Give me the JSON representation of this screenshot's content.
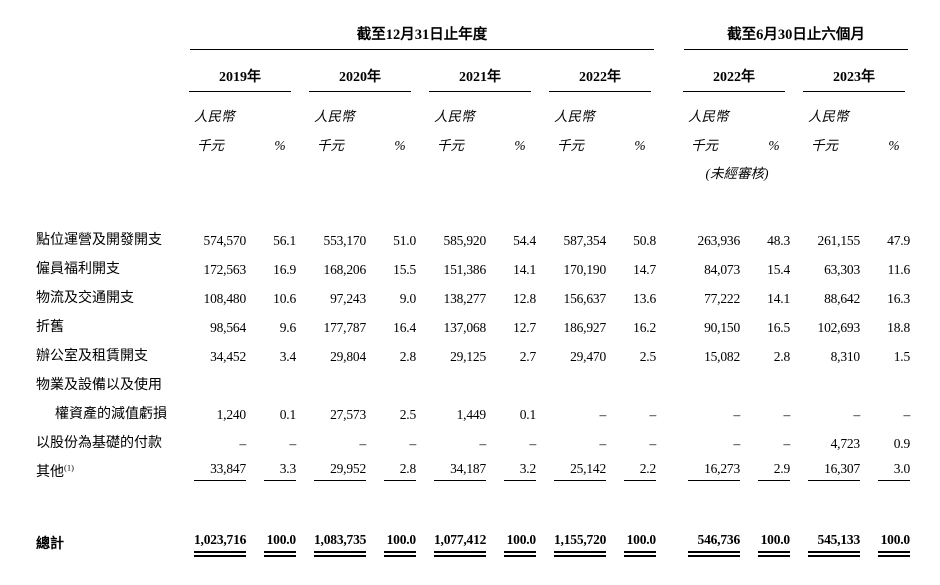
{
  "page": {
    "background": "#ffffff",
    "text_color": "#000000"
  },
  "table": {
    "col_groups": [
      {
        "title": "截至12月31日止年度",
        "years": [
          "2019年",
          "2020年",
          "2021年",
          "2022年"
        ]
      },
      {
        "title": "截至6月30日止六個月",
        "years": [
          "2022年",
          "2023年"
        ]
      }
    ],
    "years_flat": [
      "2019年",
      "2020年",
      "2021年",
      "2022年",
      "2022年",
      "2023年"
    ],
    "labels": {
      "currency": "人民幣",
      "unit": "千元",
      "pct": "%",
      "unaudited": "(未經審核)"
    },
    "rows": [
      {
        "label": "點位運營及開發開支",
        "values": [
          "574,570",
          "56.1",
          "553,170",
          "51.0",
          "585,920",
          "54.4",
          "587,354",
          "50.8",
          "263,936",
          "48.3",
          "261,155",
          "47.9"
        ]
      },
      {
        "label": "僱員福利開支",
        "values": [
          "172,563",
          "16.9",
          "168,206",
          "15.5",
          "151,386",
          "14.1",
          "170,190",
          "14.7",
          "84,073",
          "15.4",
          "63,303",
          "11.6"
        ]
      },
      {
        "label": "物流及交通開支",
        "values": [
          "108,480",
          "10.6",
          "97,243",
          "9.0",
          "138,277",
          "12.8",
          "156,637",
          "13.6",
          "77,222",
          "14.1",
          "88,642",
          "16.3"
        ]
      },
      {
        "label": "折舊",
        "values": [
          "98,564",
          "9.6",
          "177,787",
          "16.4",
          "137,068",
          "12.7",
          "186,927",
          "16.2",
          "90,150",
          "16.5",
          "102,693",
          "18.8"
        ]
      },
      {
        "label": "辦公室及租賃開支",
        "values": [
          "34,452",
          "3.4",
          "29,804",
          "2.8",
          "29,125",
          "2.7",
          "29,470",
          "2.5",
          "15,082",
          "2.8",
          "8,310",
          "1.5"
        ]
      },
      {
        "label": "物業及設備以及使用",
        "values": []
      },
      {
        "label": "權資產的減值虧損",
        "indent": true,
        "values": [
          "1,240",
          "0.1",
          "27,573",
          "2.5",
          "1,449",
          "0.1",
          "–",
          "–",
          "–",
          "–",
          "–",
          "–"
        ]
      },
      {
        "label": "以股份為基礎的付款",
        "values": [
          "–",
          "–",
          "–",
          "–",
          "–",
          "–",
          "–",
          "–",
          "–",
          "–",
          "4,723",
          "0.9"
        ]
      },
      {
        "label": "其他",
        "sup": "(1)",
        "underline": true,
        "values": [
          "33,847",
          "3.3",
          "29,952",
          "2.8",
          "34,187",
          "3.2",
          "25,142",
          "2.2",
          "16,273",
          "2.9",
          "16,307",
          "3.0"
        ]
      }
    ],
    "total": {
      "label": "總計",
      "values": [
        "1,023,716",
        "100.0",
        "1,083,735",
        "100.0",
        "1,077,412",
        "100.0",
        "1,155,720",
        "100.0",
        "546,736",
        "100.0",
        "545,133",
        "100.0"
      ]
    }
  }
}
